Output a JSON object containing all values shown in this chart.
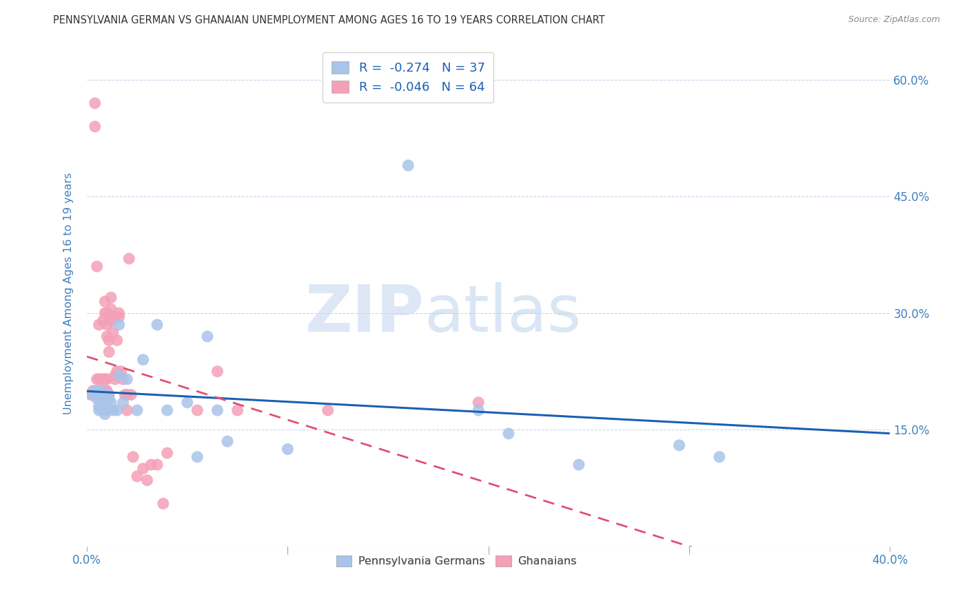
{
  "title": "PENNSYLVANIA GERMAN VS GHANAIAN UNEMPLOYMENT AMONG AGES 16 TO 19 YEARS CORRELATION CHART",
  "source": "Source: ZipAtlas.com",
  "ylabel": "Unemployment Among Ages 16 to 19 years",
  "xlim": [
    0.0,
    0.4
  ],
  "ylim": [
    0.0,
    0.65
  ],
  "watermark_zip": "ZIP",
  "watermark_atlas": "atlas",
  "legend": {
    "blue_r": -0.274,
    "blue_n": 37,
    "pink_r": -0.046,
    "pink_n": 64
  },
  "blue_scatter_x": [
    0.003,
    0.004,
    0.005,
    0.006,
    0.006,
    0.007,
    0.007,
    0.008,
    0.008,
    0.009,
    0.009,
    0.01,
    0.01,
    0.011,
    0.012,
    0.013,
    0.015,
    0.016,
    0.016,
    0.018,
    0.02,
    0.025,
    0.028,
    0.035,
    0.04,
    0.05,
    0.055,
    0.06,
    0.065,
    0.07,
    0.1,
    0.16,
    0.195,
    0.21,
    0.245,
    0.295,
    0.315
  ],
  "blue_scatter_y": [
    0.195,
    0.2,
    0.19,
    0.18,
    0.175,
    0.185,
    0.2,
    0.175,
    0.195,
    0.185,
    0.17,
    0.175,
    0.195,
    0.19,
    0.185,
    0.175,
    0.175,
    0.22,
    0.285,
    0.185,
    0.215,
    0.175,
    0.24,
    0.285,
    0.175,
    0.185,
    0.115,
    0.27,
    0.175,
    0.135,
    0.125,
    0.49,
    0.175,
    0.145,
    0.105,
    0.13,
    0.115
  ],
  "pink_scatter_x": [
    0.002,
    0.003,
    0.004,
    0.004,
    0.005,
    0.005,
    0.005,
    0.005,
    0.006,
    0.006,
    0.006,
    0.006,
    0.007,
    0.007,
    0.007,
    0.008,
    0.008,
    0.008,
    0.008,
    0.009,
    0.009,
    0.009,
    0.009,
    0.009,
    0.01,
    0.01,
    0.01,
    0.01,
    0.01,
    0.01,
    0.011,
    0.011,
    0.011,
    0.012,
    0.012,
    0.012,
    0.013,
    0.013,
    0.014,
    0.014,
    0.015,
    0.015,
    0.016,
    0.016,
    0.017,
    0.018,
    0.019,
    0.02,
    0.02,
    0.021,
    0.022,
    0.023,
    0.025,
    0.028,
    0.03,
    0.032,
    0.035,
    0.038,
    0.04,
    0.055,
    0.065,
    0.075,
    0.12,
    0.195
  ],
  "pink_scatter_y": [
    0.195,
    0.2,
    0.54,
    0.57,
    0.195,
    0.2,
    0.215,
    0.36,
    0.195,
    0.2,
    0.215,
    0.285,
    0.195,
    0.2,
    0.215,
    0.195,
    0.2,
    0.215,
    0.29,
    0.195,
    0.2,
    0.215,
    0.3,
    0.315,
    0.195,
    0.2,
    0.215,
    0.3,
    0.285,
    0.27,
    0.195,
    0.25,
    0.265,
    0.29,
    0.305,
    0.32,
    0.275,
    0.295,
    0.215,
    0.22,
    0.225,
    0.265,
    0.3,
    0.295,
    0.225,
    0.215,
    0.195,
    0.195,
    0.175,
    0.37,
    0.195,
    0.115,
    0.09,
    0.1,
    0.085,
    0.105,
    0.105,
    0.055,
    0.12,
    0.175,
    0.225,
    0.175,
    0.175,
    0.185
  ],
  "blue_color": "#a8c4e8",
  "pink_color": "#f4a0b8",
  "blue_line_color": "#1a5fb4",
  "pink_line_color": "#e05070",
  "background_color": "#ffffff",
  "grid_color": "#c8d8ec",
  "axis_label_color": "#4080c0",
  "right_ytick_labels": [
    "60.0%",
    "45.0%",
    "30.0%",
    "15.0%"
  ],
  "right_ytick_values": [
    0.6,
    0.45,
    0.3,
    0.15
  ]
}
